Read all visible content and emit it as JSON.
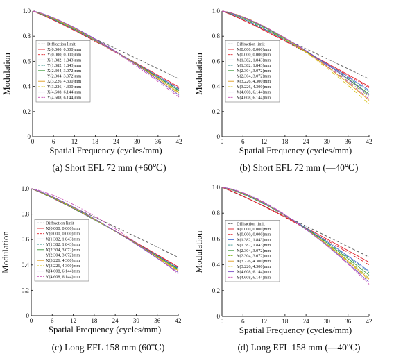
{
  "chart_data": [
    {
      "type": "line",
      "caption": "(a) Short EFL 72 mm (+60℃)",
      "xlabel": "Spatial Frequency (cycles/mm)",
      "ylabel": "Modulation",
      "xlim": [
        0,
        42
      ],
      "ylim": [
        0,
        1.0
      ],
      "xticks": [
        "0",
        "6",
        "12",
        "18",
        "24",
        "30",
        "36",
        "42"
      ],
      "yticks": [
        "0",
        "0.2",
        "0.4",
        "0.6",
        "0.8",
        "1.0"
      ],
      "legend_position": "lower-left",
      "series": [
        {
          "name": "Diffraction limit",
          "color": "#555555",
          "dash": "dash",
          "y_end": 0.46,
          "curve": 1.05
        },
        {
          "name": "X(0.000, 0.000)mm",
          "color": "#e0202a",
          "dash": "solid",
          "y_end": 0.395,
          "curve": 1.1
        },
        {
          "name": "Y(0.000, 0.000)mm",
          "color": "#e0202a",
          "dash": "dashdot",
          "y_end": 0.385,
          "curve": 1.1
        },
        {
          "name": "X(1.382, 1.843)mm",
          "color": "#4b6fd8",
          "dash": "solid",
          "y_end": 0.38,
          "curve": 1.15
        },
        {
          "name": "Y(1.382, 1.843)mm",
          "color": "#2f8f87",
          "dash": "dashdot",
          "y_end": 0.372,
          "curve": 1.15
        },
        {
          "name": "X(2.304, 3.072)mm",
          "color": "#3c9b3c",
          "dash": "solid",
          "y_end": 0.365,
          "curve": 1.2
        },
        {
          "name": "Y(2.304, 3.072)mm",
          "color": "#8fbf3a",
          "dash": "dashdot",
          "y_end": 0.355,
          "curve": 1.2
        },
        {
          "name": "X(3.226, 4.300)mm",
          "color": "#e09a1a",
          "dash": "solid",
          "y_end": 0.35,
          "curve": 1.25
        },
        {
          "name": "Y(3.226, 4.300)mm",
          "color": "#d4c21a",
          "dash": "dashdot",
          "y_end": 0.34,
          "curve": 1.25
        },
        {
          "name": "X(4.608, 6.144)mm",
          "color": "#7a4fc8",
          "dash": "solid",
          "y_end": 0.33,
          "curve": 1.3
        },
        {
          "name": "Y(4.608, 6.144)mm",
          "color": "#c84fb4",
          "dash": "dashdot",
          "y_end": 0.315,
          "curve": 1.3
        }
      ]
    },
    {
      "type": "line",
      "caption": "(b) Short EFL 72 mm (—40℃)",
      "xlabel": "Spatial Frequency (cycles/mm)",
      "ylabel": "Modulation",
      "xlim": [
        0,
        42
      ],
      "ylim": [
        0,
        1.0
      ],
      "xticks": [
        "0",
        "6",
        "12",
        "18",
        "24",
        "30",
        "36",
        "42"
      ],
      "yticks": [
        "0",
        "0.2",
        "0.4",
        "0.6",
        "0.8",
        "1.0"
      ],
      "legend_position": "lower-left",
      "series": [
        {
          "name": "Diffraction limit",
          "color": "#555555",
          "dash": "dash",
          "y_end": 0.46,
          "curve": 1.05
        },
        {
          "name": "X(0.000, 0.000)mm",
          "color": "#e0202a",
          "dash": "solid",
          "y_end": 0.4,
          "curve": 1.1
        },
        {
          "name": "Y(0.000, 0.000)mm",
          "color": "#e0202a",
          "dash": "dashdot",
          "y_end": 0.39,
          "curve": 1.1
        },
        {
          "name": "X(1.382, 1.843)mm",
          "color": "#4b6fd8",
          "dash": "solid",
          "y_end": 0.37,
          "curve": 1.2
        },
        {
          "name": "Y(1.382, 1.843)mm",
          "color": "#2f8f87",
          "dash": "dashdot",
          "y_end": 0.36,
          "curve": 1.2
        },
        {
          "name": "X(2.304, 3.072)mm",
          "color": "#3c9b3c",
          "dash": "solid",
          "y_end": 0.34,
          "curve": 1.3
        },
        {
          "name": "Y(2.304, 3.072)mm",
          "color": "#8fbf3a",
          "dash": "dashdot",
          "y_end": 0.32,
          "curve": 1.3
        },
        {
          "name": "X(3.226, 4.300)mm",
          "color": "#e09a1a",
          "dash": "solid",
          "y_end": 0.29,
          "curve": 1.4
        },
        {
          "name": "Y(3.226, 4.300)mm",
          "color": "#d4c21a",
          "dash": "dashdot",
          "y_end": 0.26,
          "curve": 1.45
        },
        {
          "name": "X(4.608, 6.144)mm",
          "color": "#7a4fc8",
          "dash": "solid",
          "y_end": 0.33,
          "curve": 1.35
        },
        {
          "name": "Y(4.608, 6.144)mm",
          "color": "#c84fb4",
          "dash": "dashdot",
          "y_end": 0.3,
          "curve": 1.4
        }
      ]
    },
    {
      "type": "line",
      "caption": "(c) Long EFL 158 mm (60℃)",
      "xlabel": "Spatial Frequency (cycles/mm)",
      "ylabel": "Modulation",
      "xlim": [
        0,
        42
      ],
      "ylim": [
        0,
        1.0
      ],
      "xticks": [
        "0",
        "6",
        "12",
        "18",
        "24",
        "30",
        "36",
        "42"
      ],
      "yticks": [
        "0",
        "0.2",
        "0.4",
        "0.6",
        "0.8",
        "1.0"
      ],
      "legend_position": "lower-left",
      "series": [
        {
          "name": "Diffraction limit",
          "color": "#555555",
          "dash": "dash",
          "y_end": 0.46,
          "curve": 1.05
        },
        {
          "name": "X(0.000, 0.000)mm",
          "color": "#e0202a",
          "dash": "solid",
          "y_end": 0.385,
          "curve": 1.1
        },
        {
          "name": "Y(0.000, 0.000)mm",
          "color": "#e0202a",
          "dash": "dashdot",
          "y_end": 0.38,
          "curve": 1.1
        },
        {
          "name": "X(1.382, 1.843)mm",
          "color": "#4b6fd8",
          "dash": "solid",
          "y_end": 0.375,
          "curve": 1.12
        },
        {
          "name": "Y(1.382, 1.843)mm",
          "color": "#2f8f87",
          "dash": "dashdot",
          "y_end": 0.37,
          "curve": 1.12
        },
        {
          "name": "X(2.304, 3.072)mm",
          "color": "#3c9b3c",
          "dash": "solid",
          "y_end": 0.365,
          "curve": 1.15
        },
        {
          "name": "Y(2.304, 3.072)mm",
          "color": "#8fbf3a",
          "dash": "dashdot",
          "y_end": 0.36,
          "curve": 1.15
        },
        {
          "name": "X(3.226, 4.300)mm",
          "color": "#e09a1a",
          "dash": "solid",
          "y_end": 0.355,
          "curve": 1.18
        },
        {
          "name": "Y(3.226, 4.300)mm",
          "color": "#d4c21a",
          "dash": "dashdot",
          "y_end": 0.35,
          "curve": 1.18
        },
        {
          "name": "X(4.608, 6.144)mm",
          "color": "#7a4fc8",
          "dash": "solid",
          "y_end": 0.34,
          "curve": 1.22
        },
        {
          "name": "Y(4.608, 6.144)mm",
          "color": "#c84fb4",
          "dash": "dashdot",
          "y_end": 0.33,
          "curve": 1.35
        }
      ]
    },
    {
      "type": "line",
      "caption": "(d) Long EFL 158 mm (—40℃)",
      "xlabel": "Spatial Frequency (cycles/mm)",
      "ylabel": "Modulation",
      "xlim": [
        0,
        42
      ],
      "ylim": [
        0,
        1.0
      ],
      "xticks": [
        "0",
        "6",
        "12",
        "18",
        "24",
        "30",
        "36",
        "42"
      ],
      "yticks": [
        "0",
        "0.2",
        "0.4",
        "0.6",
        "0.8",
        "1.0"
      ],
      "legend_position": "lower-left",
      "series": [
        {
          "name": "Diffraction limit",
          "color": "#555555",
          "dash": "dash",
          "y_end": 0.46,
          "curve": 1.05
        },
        {
          "name": "X(0.000, 0.000)mm",
          "color": "#e0202a",
          "dash": "solid",
          "y_end": 0.42,
          "curve": 1.1
        },
        {
          "name": "Y(0.000, 0.000)mm",
          "color": "#e0202a",
          "dash": "dashdot",
          "y_end": 0.4,
          "curve": 1.12
        },
        {
          "name": "X(1.382, 1.843)mm",
          "color": "#4b6fd8",
          "dash": "solid",
          "y_end": 0.35,
          "curve": 1.3
        },
        {
          "name": "Y(1.382, 1.843)mm",
          "color": "#2f8f87",
          "dash": "dashdot",
          "y_end": 0.34,
          "curve": 1.3
        },
        {
          "name": "X(2.304, 3.072)mm",
          "color": "#3c9b3c",
          "dash": "solid",
          "y_end": 0.32,
          "curve": 1.35
        },
        {
          "name": "Y(2.304, 3.072)mm",
          "color": "#8fbf3a",
          "dash": "dashdot",
          "y_end": 0.3,
          "curve": 1.38
        },
        {
          "name": "X(3.226, 4.300)mm",
          "color": "#e09a1a",
          "dash": "solid",
          "y_end": 0.29,
          "curve": 1.4
        },
        {
          "name": "Y(3.226, 4.300)mm",
          "color": "#d4c21a",
          "dash": "dashdot",
          "y_end": 0.28,
          "curve": 1.42
        },
        {
          "name": "X(4.608, 6.144)mm",
          "color": "#7a4fc8",
          "dash": "solid",
          "y_end": 0.265,
          "curve": 1.45
        },
        {
          "name": "Y(4.608, 6.144)mm",
          "color": "#c84fb4",
          "dash": "dashdot",
          "y_end": 0.25,
          "curve": 1.5
        }
      ]
    }
  ]
}
